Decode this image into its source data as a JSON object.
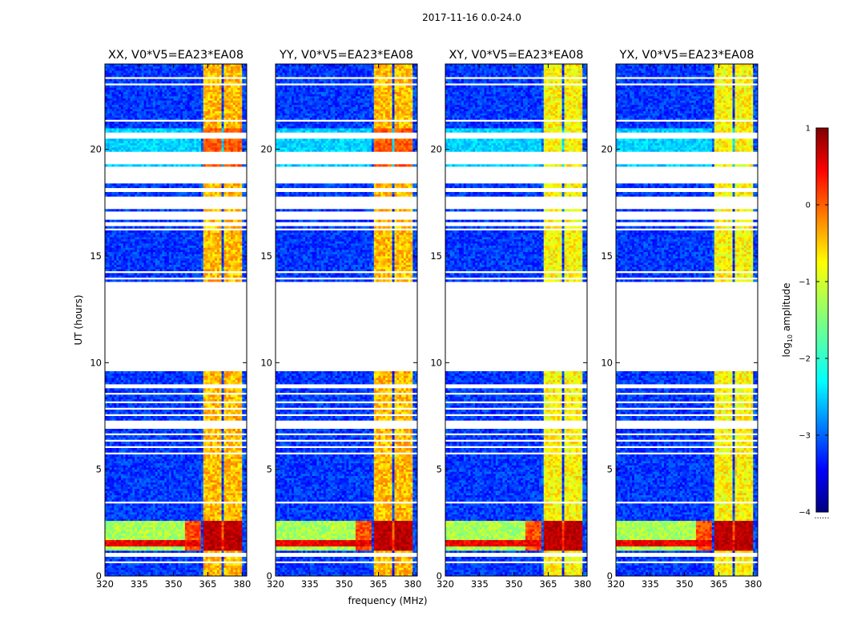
{
  "figure": {
    "suptitle": "2017-11-16 0.0-24.0"
  },
  "chart_data": {
    "type": "heatmap",
    "title": "2017-11-16 0.0-24.0",
    "xlabel": "frequency (MHz)",
    "ylabel": "UT (hours)",
    "xlim": [
      320,
      382
    ],
    "ylim": [
      0,
      24
    ],
    "xticks": [
      320,
      335,
      350,
      365,
      380
    ],
    "yticks": [
      0,
      5,
      10,
      15,
      20
    ],
    "colorbar": {
      "label": "log10 amplitude",
      "label_main": "log",
      "label_sub": "10",
      "label_rest": " amplitude",
      "range": [
        -4,
        1
      ],
      "ticks": [
        -4,
        -3,
        -2,
        -1,
        0,
        1
      ],
      "colormap": "jet",
      "extra_label": "......"
    },
    "panels": [
      {
        "title": "XX, V0*V5=EA23*EA08",
        "pol": "XX"
      },
      {
        "title": "YY, V0*V5=EA23*EA08",
        "pol": "YY"
      },
      {
        "title": "XY, V0*V5=EA23*EA08",
        "pol": "XY"
      },
      {
        "title": "YX, V0*V5=EA23*EA08",
        "pol": "YX"
      }
    ],
    "data_gaps_ut": [
      [
        0.65,
        0.75
      ],
      [
        0.95,
        1.1
      ],
      [
        3.45,
        3.55
      ],
      [
        5.7,
        5.8
      ],
      [
        6.0,
        6.1
      ],
      [
        6.3,
        6.45
      ],
      [
        6.6,
        6.7
      ],
      [
        6.9,
        7.3
      ],
      [
        7.55,
        7.65
      ],
      [
        7.85,
        7.95
      ],
      [
        8.15,
        8.25
      ],
      [
        8.5,
        8.6
      ],
      [
        8.85,
        9.05
      ],
      [
        9.6,
        13.8
      ],
      [
        13.95,
        14.05
      ],
      [
        14.25,
        14.35
      ],
      [
        14.6,
        14.65
      ],
      [
        15.1,
        15.15
      ],
      [
        15.5,
        15.55
      ],
      [
        16.25,
        16.3
      ],
      [
        16.4,
        16.6
      ],
      [
        16.7,
        17.1
      ],
      [
        17.2,
        17.85
      ],
      [
        18.05,
        18.2
      ],
      [
        18.4,
        19.2
      ],
      [
        19.35,
        19.9
      ],
      [
        20.5,
        20.8
      ],
      [
        21.0,
        21.05
      ],
      [
        21.3,
        21.4
      ],
      [
        21.7,
        21.75
      ],
      [
        22.1,
        22.15
      ],
      [
        22.4,
        22.45
      ],
      [
        23.0,
        23.1
      ],
      [
        23.3,
        23.45
      ],
      [
        24.0,
        24.0
      ]
    ],
    "rfi_bands_mhz": [
      [
        363,
        367
      ],
      [
        367.5,
        371.5
      ],
      [
        372,
        376
      ],
      [
        376.5,
        380
      ]
    ],
    "hot_ut_range": [
      1.2,
      2.6
    ]
  }
}
